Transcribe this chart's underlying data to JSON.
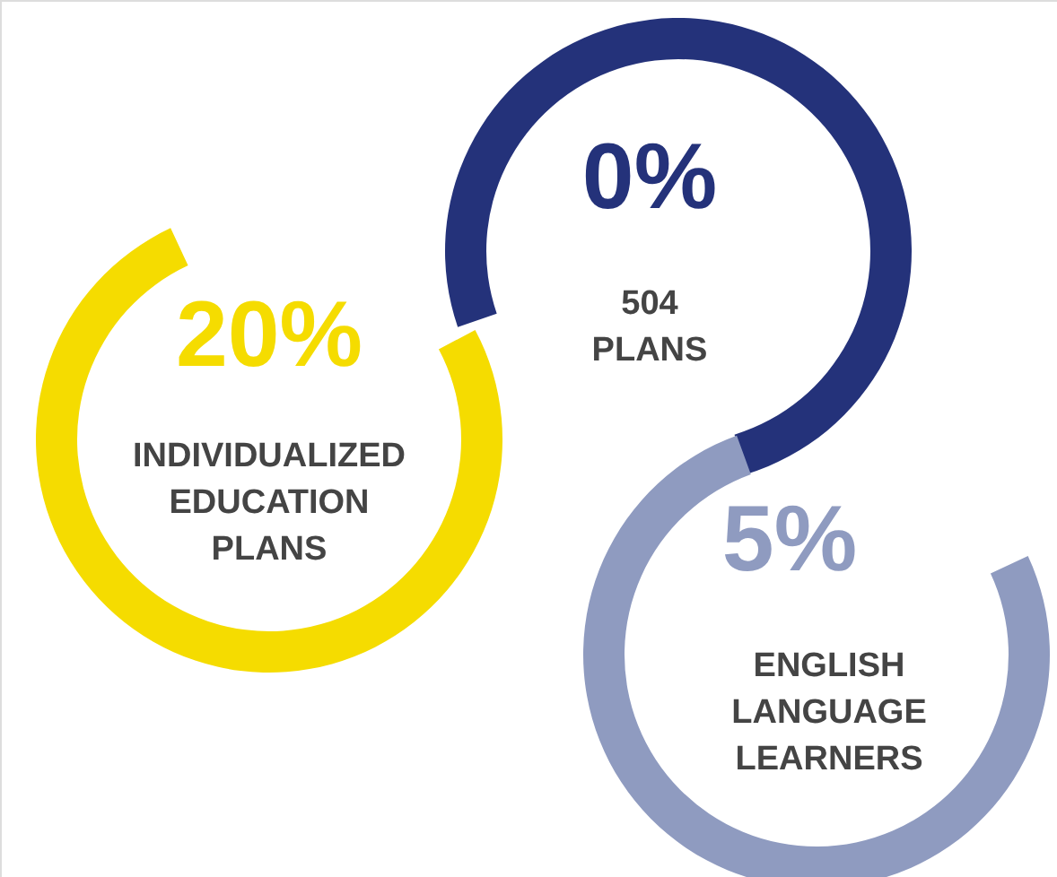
{
  "chart_data": {
    "type": "other",
    "categories": [
      "INDIVIDUALIZED EDUCATION PLANS",
      "504 PLANS",
      "ENGLISH LANGUAGE LEARNERS"
    ],
    "values": [
      20,
      0,
      5
    ],
    "value_labels": [
      "20%",
      "0%",
      "5%"
    ],
    "colors": [
      "#f5dc00",
      "#24327a",
      "#8f9bc0"
    ]
  }
}
